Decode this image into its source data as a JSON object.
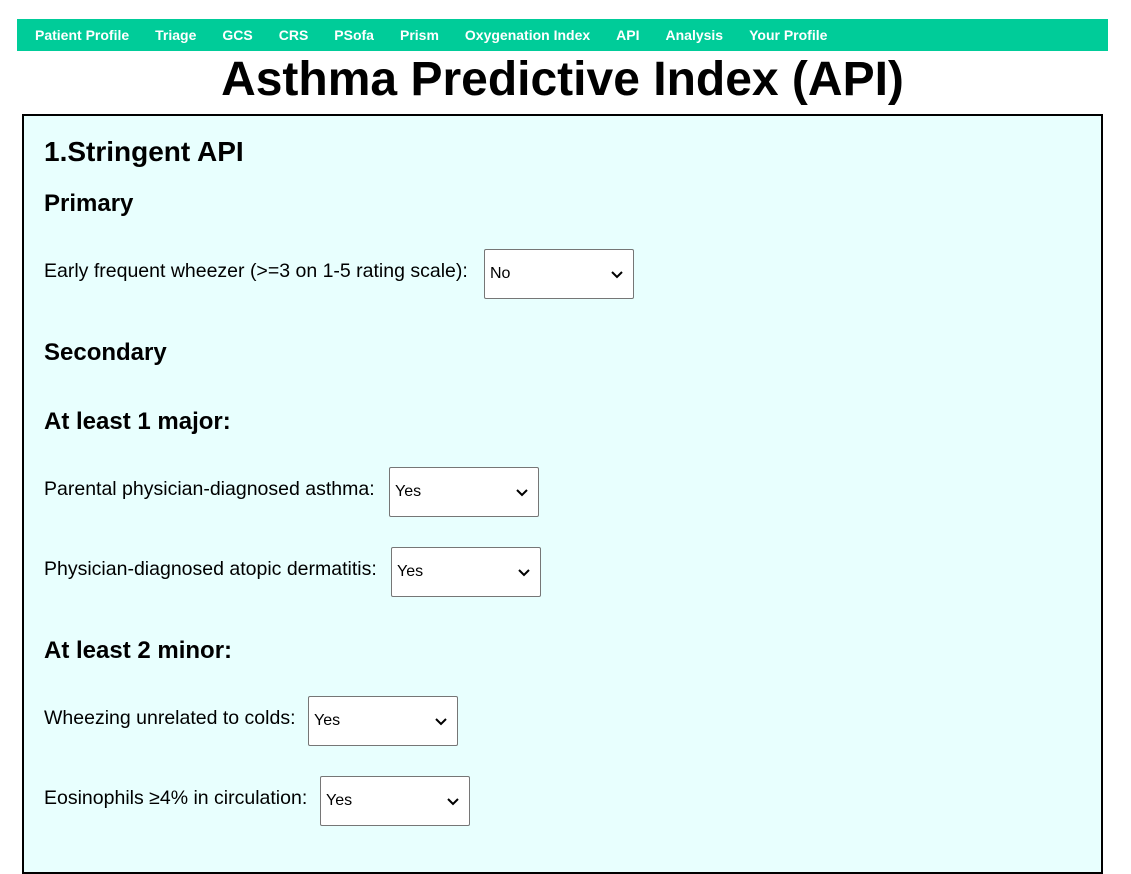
{
  "nav": {
    "items": [
      {
        "label": "Patient Profile"
      },
      {
        "label": "Triage"
      },
      {
        "label": "GCS"
      },
      {
        "label": "CRS"
      },
      {
        "label": "PSofa"
      },
      {
        "label": "Prism"
      },
      {
        "label": "Oxygenation Index"
      },
      {
        "label": "API"
      },
      {
        "label": "Analysis"
      },
      {
        "label": "Your Profile"
      }
    ]
  },
  "page": {
    "title": "Asthma Predictive Index (API)"
  },
  "form": {
    "section_title": "1.Stringent API",
    "primary_heading": "Primary",
    "secondary_heading": "Secondary",
    "major_heading": "At least 1 major:",
    "minor_heading": "At least 2 minor:",
    "early_wheezer": {
      "label": "Early frequent wheezer (>=3 on 1-5 rating scale):",
      "value": "No"
    },
    "parental_asthma": {
      "label": "Parental physician-diagnosed asthma:",
      "value": "Yes"
    },
    "atopic_dermatitis": {
      "label": "Physician-diagnosed atopic dermatitis:",
      "value": "Yes"
    },
    "wheezing_colds": {
      "label": "Wheezing unrelated to colds:",
      "value": "Yes"
    },
    "eosinophils": {
      "label": "Eosinophils ≥4% in circulation:",
      "value": "Yes"
    }
  },
  "icons": {
    "select_arrow": "chevron-down-icon"
  },
  "colors": {
    "navbar": "#00cc99",
    "card_background": "#e8fffe"
  }
}
